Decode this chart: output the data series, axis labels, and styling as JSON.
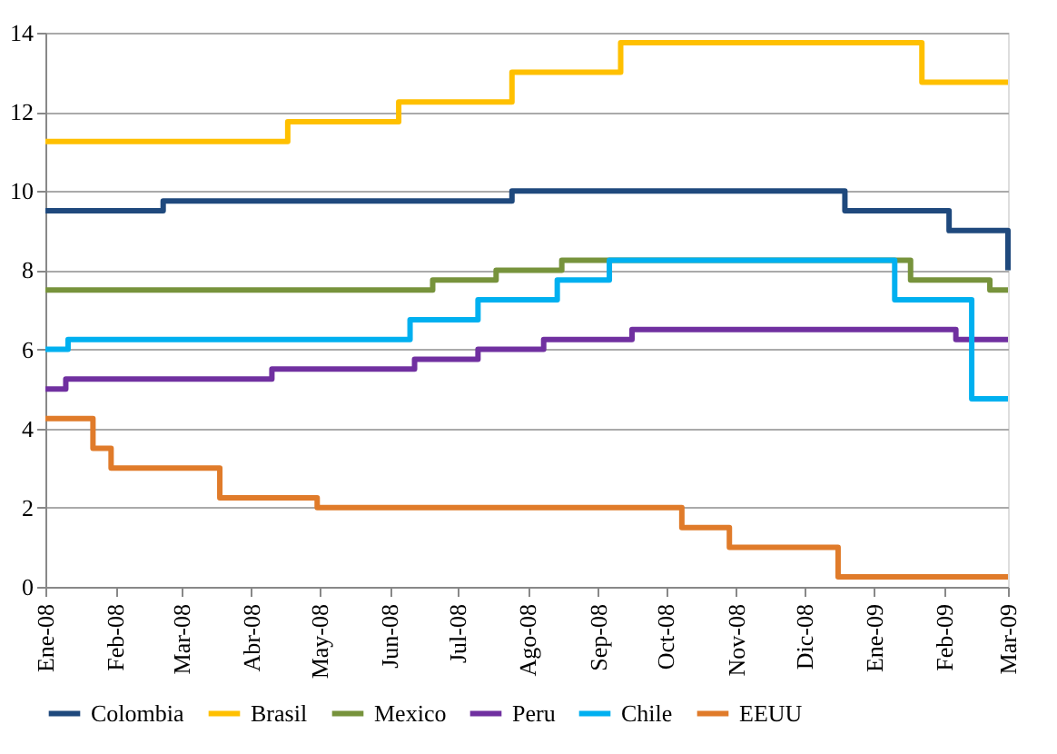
{
  "chart_data": {
    "type": "step",
    "xlim": [
      "2008-01-01",
      "2009-03-01"
    ],
    "xticks": [
      {
        "value": "2008-01-01",
        "label": "Ene-08"
      },
      {
        "value": "2008-02-01",
        "label": "Feb-08"
      },
      {
        "value": "2008-03-01",
        "label": "Mar-08"
      },
      {
        "value": "2008-04-01",
        "label": "Abr-08"
      },
      {
        "value": "2008-05-01",
        "label": "May-08"
      },
      {
        "value": "2008-06-01",
        "label": "Jun-08"
      },
      {
        "value": "2008-07-01",
        "label": "Jul-08"
      },
      {
        "value": "2008-08-01",
        "label": "Ago-08"
      },
      {
        "value": "2008-09-01",
        "label": "Sep-08"
      },
      {
        "value": "2008-10-01",
        "label": "Oct-08"
      },
      {
        "value": "2008-11-01",
        "label": "Nov-08"
      },
      {
        "value": "2008-12-01",
        "label": "Dic-08"
      },
      {
        "value": "2009-01-01",
        "label": "Ene-09"
      },
      {
        "value": "2009-02-01",
        "label": "Feb-09"
      },
      {
        "value": "2009-03-01",
        "label": "Mar-09"
      }
    ],
    "ylim": [
      0,
      14
    ],
    "yticks": [
      0,
      2,
      4,
      6,
      8,
      10,
      12,
      14
    ],
    "grid": "y",
    "legend": "bottom",
    "marker": "none",
    "line_style": "solid",
    "series": [
      {
        "name": "Colombia",
        "color": "#1f497d",
        "x": [
          "2008-01-01",
          "2008-02-22",
          "2008-07-25",
          "2008-12-19",
          "2009-02-03",
          "2009-03-01"
        ],
        "values": [
          9.5,
          9.75,
          10.0,
          9.5,
          9.0,
          8.0
        ]
      },
      {
        "name": "Brasil",
        "color": "#ffc000",
        "x": [
          "2008-01-01",
          "2008-04-17",
          "2008-06-05",
          "2008-07-25",
          "2008-09-11",
          "2009-01-22",
          "2009-03-01"
        ],
        "values": [
          11.25,
          11.75,
          12.25,
          13.0,
          13.75,
          12.75,
          12.75
        ]
      },
      {
        "name": "Mexico",
        "color": "#77933c",
        "x": [
          "2008-01-01",
          "2008-06-20",
          "2008-07-18",
          "2008-08-16",
          "2009-01-17",
          "2009-02-21",
          "2009-03-01"
        ],
        "values": [
          7.5,
          7.75,
          8.0,
          8.25,
          7.75,
          7.5,
          7.5
        ]
      },
      {
        "name": "Peru",
        "color": "#7030a0",
        "x": [
          "2008-01-01",
          "2008-01-10",
          "2008-04-10",
          "2008-06-12",
          "2008-07-10",
          "2008-08-08",
          "2008-09-16",
          "2009-02-06",
          "2009-03-01"
        ],
        "values": [
          5.0,
          5.25,
          5.5,
          5.75,
          6.0,
          6.25,
          6.5,
          6.25,
          6.25
        ]
      },
      {
        "name": "Chile",
        "color": "#00b0f0",
        "x": [
          "2008-01-01",
          "2008-01-11",
          "2008-06-10",
          "2008-07-10",
          "2008-08-14",
          "2008-09-06",
          "2009-01-10",
          "2009-02-13",
          "2009-03-01"
        ],
        "values": [
          6.0,
          6.25,
          6.75,
          7.25,
          7.75,
          8.25,
          7.25,
          4.75,
          4.75
        ]
      },
      {
        "name": "EEUU",
        "color": "#e07b2a",
        "x": [
          "2008-01-01",
          "2008-01-22",
          "2008-01-30",
          "2008-03-18",
          "2008-04-30",
          "2008-10-08",
          "2008-10-29",
          "2008-12-16",
          "2009-03-01"
        ],
        "values": [
          4.25,
          3.5,
          3.0,
          2.25,
          2.0,
          1.5,
          1.0,
          0.25,
          0.25
        ]
      }
    ]
  }
}
